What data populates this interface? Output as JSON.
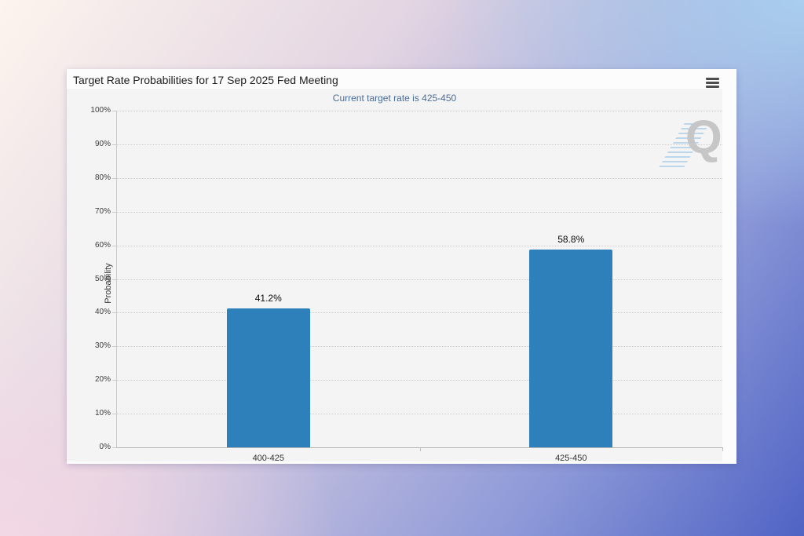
{
  "card": {
    "menu_icon": "hamburger-icon"
  },
  "chart_data": {
    "type": "bar",
    "title": "Target Rate Probabilities for 17 Sep 2025 Fed Meeting",
    "subtitle": "Current target rate is 425-450",
    "categories": [
      "400-425",
      "425-450"
    ],
    "values": [
      41.2,
      58.8
    ],
    "data_labels": [
      "41.2%",
      "58.8%"
    ],
    "xlabel": "",
    "ylabel": "Probability",
    "ylim": [
      0,
      100
    ],
    "ytick_step": 10,
    "ytick_labels": [
      "0%",
      "10%",
      "20%",
      "30%",
      "40%",
      "50%",
      "60%",
      "70%",
      "80%",
      "90%",
      "100%"
    ],
    "grid": "dotted-horizontal",
    "legend": "none",
    "bar_color": "#2d80ba",
    "watermark_letter": "Q"
  },
  "colors": {
    "bar": "#2d80ba",
    "subtitle_text": "#4a6b99",
    "plot_background": "#f4f4f4",
    "card_background": "#fcfcfc",
    "bg_top_left": "#fdf4ee",
    "bg_top_right": "#a9ceee",
    "bg_bottom_left": "#f3d7e4",
    "bg_bottom_right": "#4f63c4"
  }
}
